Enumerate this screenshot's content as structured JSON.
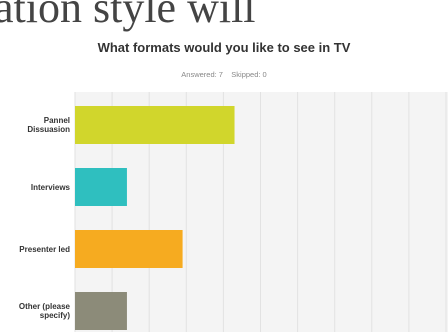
{
  "header_fragment": "ation style will",
  "chart_data": {
    "type": "hbar",
    "title": "What formats would you like to see in TV",
    "subtitle": "Answered: 7    Skipped: 0",
    "categories": [
      "Pannel Dissuasion",
      "Interviews",
      "Presenter led",
      "Other (please specify)"
    ],
    "values": [
      43,
      14,
      29,
      14
    ],
    "colors": [
      "#d1d62c",
      "#2fbfbf",
      "#f6ab20",
      "#8c8b79"
    ],
    "xlim": [
      0,
      100
    ],
    "xticks": [
      0,
      10,
      20,
      30,
      40,
      50,
      60,
      70,
      80,
      90,
      100
    ],
    "grid": true
  }
}
